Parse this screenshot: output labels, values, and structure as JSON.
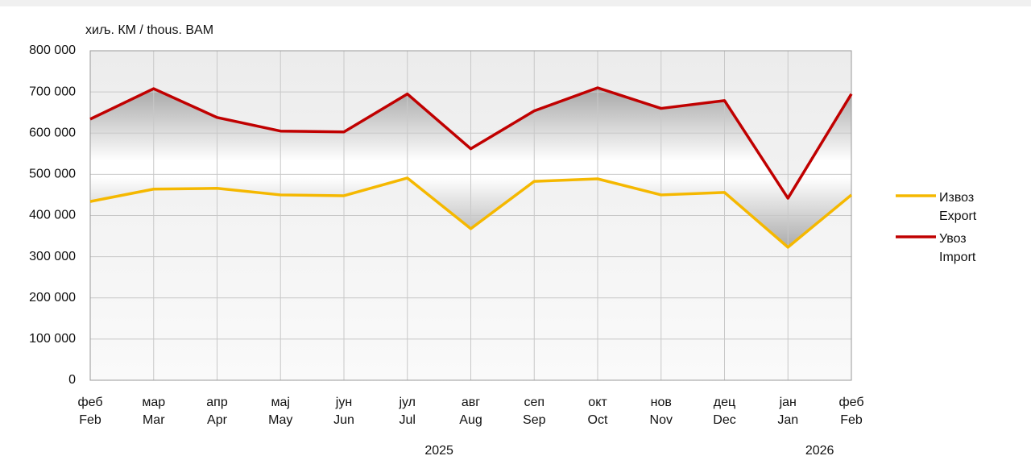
{
  "chart_data": {
    "type": "line",
    "y_label": "хиљ. КМ / thous. BAM",
    "categories": [
      [
        "феб",
        "Feb"
      ],
      [
        "мар",
        "Mar"
      ],
      [
        "апр",
        "Apr"
      ],
      [
        "мај",
        "May"
      ],
      [
        "јун",
        "Jun"
      ],
      [
        "јул",
        "Jul"
      ],
      [
        "авг",
        "Aug"
      ],
      [
        "сеп",
        "Sep"
      ],
      [
        "окт",
        "Oct"
      ],
      [
        "нов",
        "Nov"
      ],
      [
        "дец",
        "Dec"
      ],
      [
        "јан",
        "Jan"
      ],
      [
        "феб",
        "Feb"
      ]
    ],
    "year_labels": [
      "2025",
      "2026"
    ],
    "series": [
      {
        "name": "Извоз",
        "name_en": "Export",
        "color": "#f5b800",
        "values": [
          434000,
          464000,
          466000,
          450000,
          448000,
          491000,
          368000,
          483000,
          489000,
          450000,
          456000,
          323000,
          450000
        ]
      },
      {
        "name": "Увоз",
        "name_en": "Import",
        "color": "#c00000",
        "values": [
          634000,
          708000,
          638000,
          605000,
          603000,
          695000,
          562000,
          654000,
          710000,
          660000,
          679000,
          442000,
          695000
        ]
      }
    ],
    "ylim": [
      0,
      800000
    ],
    "yticks": [
      0,
      {
        "value": 100000,
        "label": "100 000"
      },
      {
        "value": 200000,
        "label": "200 000"
      },
      {
        "value": 300000,
        "label": "300 000"
      },
      {
        "value": 400000,
        "label": "400 000"
      },
      {
        "value": 500000,
        "label": "500 000"
      },
      {
        "value": 600000,
        "label": "600 000"
      },
      {
        "value": 700000,
        "label": "700 000"
      },
      {
        "value": 800000,
        "label": "800 000"
      }
    ],
    "grid": true,
    "legend": "right"
  }
}
